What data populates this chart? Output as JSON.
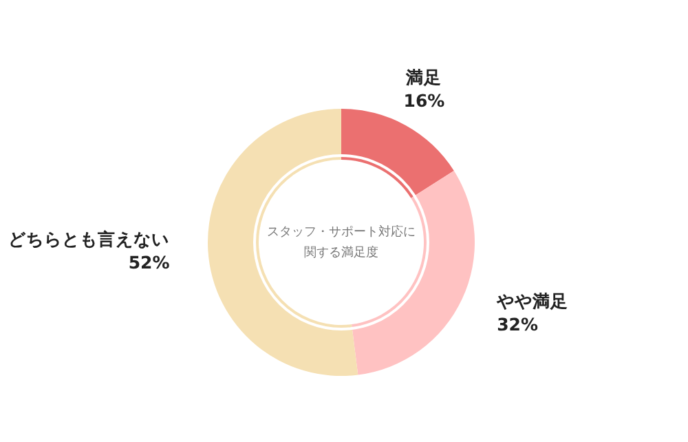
{
  "chart_data": {
    "type": "donut",
    "title": "スタッフ・サポート対応に関する満足度",
    "categories": [
      "満足",
      "やや満足",
      "どちらとも言えない"
    ],
    "values": [
      16,
      32,
      52
    ],
    "value_labels": [
      "16%",
      "32%",
      "52%"
    ],
    "colors": [
      "#eb7070",
      "#ffc2c2",
      "#f5e0b3"
    ]
  }
}
